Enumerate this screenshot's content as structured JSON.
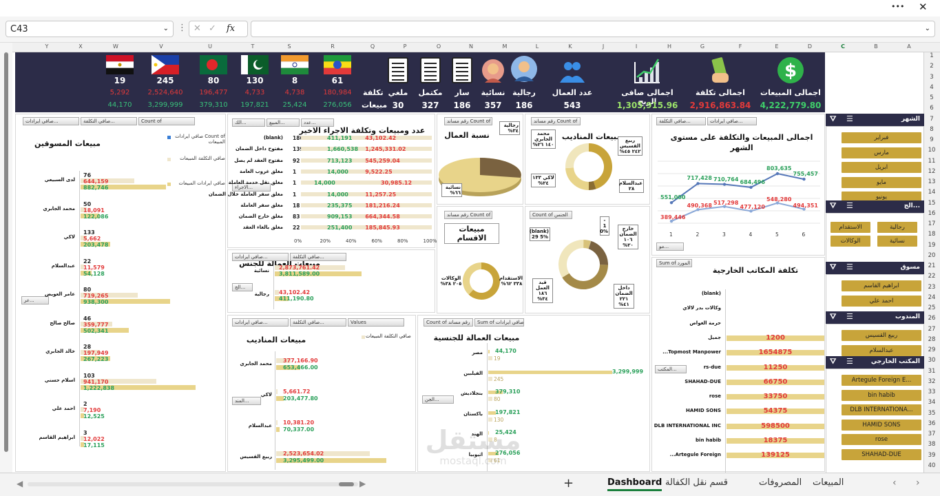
{
  "toolbar": {
    "more": "•••",
    "close": "✕"
  },
  "formula": {
    "cell": "C43",
    "fx": "fx",
    "value": ""
  },
  "columns": [
    "Y",
    "X",
    "W",
    "V",
    "U",
    "T",
    "S",
    "R",
    "Q",
    "P",
    "O",
    "N",
    "M",
    "L",
    "K",
    "J",
    "I",
    "H",
    "G",
    "F",
    "E",
    "D",
    "C",
    "B",
    "A"
  ],
  "rows": [
    "1",
    "2",
    "3",
    "4",
    "5",
    "6",
    "7",
    "8",
    "9",
    "10",
    "11",
    "12",
    "13",
    "14",
    "15",
    "16",
    "17",
    "18",
    "19",
    "20",
    "21",
    "22",
    "23",
    "24",
    "25",
    "26",
    "27",
    "28",
    "29",
    "30",
    "31",
    "32",
    "33",
    "34",
    "35",
    "36",
    "37",
    "38",
    "39",
    "40"
  ],
  "kpis": [
    {
      "label": "اجمالى المبيعات",
      "value": "4,222,779.80",
      "color": "#3fcf6a",
      "icon": "dollar-icon"
    },
    {
      "label": "اجمالى تكلفة",
      "value": "2,916,863.84",
      "color": "#e23a3a",
      "icon": "money-hand-icon"
    },
    {
      "label": "اجمالى صافى الربح",
      "value": "1,305,915.96",
      "color": "#9be26a",
      "icon": "growth-chart-icon"
    },
    {
      "label": "عدد العمال",
      "value": "543",
      "color": "#ffffff",
      "icon": "workers-icon"
    },
    {
      "label": "رجالية",
      "value": "186",
      "color": "#ffffff",
      "icon": "man-icon"
    },
    {
      "label": "نسائية",
      "value": "357",
      "color": "#ffffff",
      "icon": "woman-icon"
    },
    {
      "label": "سار",
      "value": "186",
      "color": "#ffffff",
      "icon": "file-icon"
    },
    {
      "label": "مكتمل",
      "value": "327",
      "color": "#ffffff",
      "icon": "file-icon"
    },
    {
      "label": "ملغي",
      "value": "30",
      "color": "#ffffff",
      "icon": "file-icon"
    }
  ],
  "kpi_side": {
    "l1": "تكلفة",
    "l2": "مبيعات"
  },
  "flags": [
    {
      "country": "ethiopia",
      "count": "61",
      "red": "180,984",
      "green": "276,056"
    },
    {
      "country": "india",
      "count": "8",
      "red": "4,738",
      "green": "25,424"
    },
    {
      "country": "pakistan",
      "count": "130",
      "red": "4,733",
      "green": "197,821"
    },
    {
      "country": "bangladesh",
      "count": "80",
      "red": "196,477",
      "green": "379,310"
    },
    {
      "country": "philippines",
      "count": "245",
      "red": "2,524,640",
      "green": "3,299,999"
    },
    {
      "country": "egypt",
      "count": "19",
      "red": "5,292",
      "green": "44,170"
    }
  ],
  "marketers": {
    "title": "مبيعات المسوقين",
    "chips": [
      "صافي ايرادات...",
      "صافي التكلفة...",
      "Count of"
    ],
    "legend": [
      "Count of صافي ايرادات المبيعات",
      "صافي التكلفة المبيعات",
      "صافي ايرادات المبيعات"
    ],
    "filter": "عر...",
    "rows": [
      {
        "name": "لدى السبيعي",
        "count": "76",
        "red": "644,159",
        "green": "882,746",
        "p": 0.17,
        "g": 0.23
      },
      {
        "name": "محمد الجابري",
        "count": "50",
        "red": "18,091",
        "green": "122,086",
        "p": 0.02,
        "g": 0.05
      },
      {
        "name": "لاكي",
        "count": "133",
        "red": "5,662",
        "green": "203,478",
        "p": 0.02,
        "g": 0.08
      },
      {
        "name": "عبدالسلام",
        "count": "22",
        "red": "11,579",
        "green": "54,128",
        "p": 0.01,
        "g": 0.03
      },
      {
        "name": "عامر العويض",
        "count": "80",
        "red": "719,265",
        "green": "938,300",
        "p": 0.18,
        "g": 0.24
      },
      {
        "name": "صالح صالح",
        "count": "46",
        "red": "359,777",
        "green": "502,341",
        "p": 0.1,
        "g": 0.13
      },
      {
        "name": "خالد الجابري",
        "count": "28",
        "red": "197,949",
        "green": "267,223",
        "p": 0.06,
        "g": 0.08
      },
      {
        "name": "اسلام حسني",
        "count": "103",
        "red": "941,170",
        "green": "1,222,838",
        "p": 0.24,
        "g": 0.31
      },
      {
        "name": "احمد علي",
        "count": "2",
        "red": "7,190",
        "green": "12,525",
        "p": 0.01,
        "g": 0.01
      },
      {
        "name": "ابراهيم القاسم",
        "count": "3",
        "red": "12,022",
        "green": "17,115",
        "p": 0.01,
        "g": 0.01
      }
    ]
  },
  "lastproc": {
    "title": "عدد ومبيعات وتكلفة الاجراء الاخير",
    "chips": [
      "الك...",
      "المبيع...",
      "عدد..."
    ],
    "filter": "الاجراء...",
    "ticks": [
      "0%",
      "20%",
      "40%",
      "60%",
      "80%",
      "100%"
    ],
    "rows": [
      {
        "name": "(blank)",
        "n": "186",
        "g": "411,191",
        "r": "43,102.42",
        "gp": 0.2,
        "rp": 0.28
      },
      {
        "name": "مفتوح داخل الضمان",
        "n": "139",
        "g": "1,660,538",
        "r": "1,245,331.02",
        "gp": 0.2,
        "rp": 0.28
      },
      {
        "name": "مفتوح العقد لم يصل",
        "n": "92",
        "g": "713,123",
        "r": "545,259.04",
        "gp": 0.2,
        "rp": 0.28
      },
      {
        "name": "مغلق غروب العامة",
        "n": "1",
        "g": "14,000",
        "r": "9,522.25",
        "gp": 0.2,
        "rp": 0.28
      },
      {
        "name": "مغلق نقل خدمة العاملة",
        "n": "1",
        "g": "14,000",
        "r": "30,985.12",
        "gp": 0.1,
        "rp": 0.4
      },
      {
        "name": "مغلق سفر العاملة خلال الضمان",
        "n": "1",
        "g": "14,000",
        "r": "11,257.25",
        "gp": 0.2,
        "rp": 0.28
      },
      {
        "name": "مغلق سفر العاملة",
        "n": "18",
        "g": "235,375",
        "r": "181,216.24",
        "gp": 0.2,
        "rp": 0.28
      },
      {
        "name": "مغلق خارج الضمان",
        "n": "83",
        "g": "909,153",
        "r": "664,344.58",
        "gp": 0.2,
        "rp": 0.28
      },
      {
        "name": "مغلق بالغاء العقد",
        "n": "22",
        "g": "251,400",
        "r": "185,845.93",
        "gp": 0.2,
        "rp": 0.28
      }
    ]
  },
  "ratio": {
    "title": "نسبة العمال",
    "chips": [
      "رقم مساند Count of"
    ],
    "lab1": "رجالية ٣٤%",
    "lab2": "نسائية ٦٦%"
  },
  "delegates": {
    "title": "مبيعات المناديب",
    "chips": [
      "رقم مساند Count of"
    ],
    "l1": "محمد الجابري ١٤٠ ٢٦%",
    "l2": "ربيع القسيس ٢٤٢ ٤٥%",
    "l3": "لاكي ١٣٣ ٢٤%",
    "l4": "عبدالسلام ٢٨"
  },
  "trend": {
    "title": "اجمالى المبيعات والتكلفة على مستوى الشهر",
    "chips": [
      "صافي التكلفة...",
      "صافي ايرادات..."
    ],
    "filter": "مو...",
    "x": [
      1,
      2,
      3,
      4,
      5,
      6
    ],
    "series": [
      {
        "values": [
          551000,
          717428,
          710764,
          684496,
          803635,
          755457
        ]
      },
      {
        "values": [
          389446,
          490368,
          517298,
          477120,
          548280,
          494351
        ]
      }
    ],
    "labels_top": [
      "551,000",
      "717,428",
      "710,764",
      "684,496",
      "803,635",
      "755,457"
    ],
    "labels_bot": [
      "389,446",
      "490,368",
      "517,298",
      "477,120",
      "548,280",
      "494,351"
    ]
  },
  "gender": {
    "title": "مبيعات العمالة للجنس",
    "chips": [
      "صافي ايرادات...",
      "صافي التكلفة..."
    ],
    "filter": "الج...",
    "r1": "2,873,761.42",
    "g1": "3,811,589.00",
    "n1": "نسائية",
    "r2": "43,102.42",
    "g2": "411,190.80",
    "n2": "رجالية"
  },
  "depts": {
    "title": "مبيعات الاقسام",
    "chips": [
      "رقم مساند Count of"
    ],
    "l1": "الوكالات ٢٠٥ ٣٨%",
    "l2": "الاستقدام ٣٣٨ ٦٢%"
  },
  "warranty": {
    "chips": [
      "Count of الجنس"
    ],
    "l1": "(blank) 29 5%",
    "l2": "- 1 0%",
    "l3": "خارج الضمان ١٠٦ ٢٠%",
    "l4": "قيد العمل ١٨٦ ٣٤%",
    "l5": "داخل الضمان ٢٢١ ٤١%"
  },
  "offices": {
    "title": "تكلفة المكاتب الخارجية",
    "chips": [
      "Sum of المورد"
    ],
    "filter": "المكتب...",
    "rows": [
      {
        "name": "(blank)",
        "v": ""
      },
      {
        "name": "وكالات بدر لالاي",
        "v": ""
      },
      {
        "name": "حرمة الغواص",
        "v": ""
      },
      {
        "name": "جميل",
        "v": "1200"
      },
      {
        "name": "Topmost Manpower...",
        "v": "1654875"
      },
      {
        "name": "rs-due",
        "v": "11250"
      },
      {
        "name": "SHAHAD-DUE",
        "v": "66750"
      },
      {
        "name": "rose",
        "v": "33750"
      },
      {
        "name": "HAMID SONS",
        "v": "54375"
      },
      {
        "name": "DLB INTERNATIONAL INC",
        "v": "598500"
      },
      {
        "name": "bin habib",
        "v": "18375"
      },
      {
        "name": "Artegule Foreign...",
        "v": "139125"
      }
    ]
  },
  "delsales": {
    "title": "مبيعات المناديب",
    "chips": [
      "صافي ايرادات...",
      "صافي التكلفة...",
      "Values"
    ],
    "legend": "صافي التكلفة المبيعات",
    "filter": "المند...",
    "rows": [
      {
        "name": "محمد الجابري",
        "r": "377,166.90",
        "g": "653,466.00"
      },
      {
        "name": "لاكي",
        "r": "5,661.72",
        "g": "203,477.80"
      },
      {
        "name": "عبدالسلام",
        "r": "10,381.20",
        "g": "70,337.00"
      },
      {
        "name": "ربيع القسيس",
        "r": "2,523,654.02",
        "g": "3,295,499.00"
      }
    ]
  },
  "natsales": {
    "title": "مبيعات العمالة للجنسية",
    "chips": [
      "Count of رقم مساند",
      "Sum of صافي ايرادات..."
    ],
    "filter": "الجن...",
    "rows": [
      {
        "name": "مصر",
        "g": "44,170",
        "c": "19"
      },
      {
        "name": "الفيلبين",
        "g": "3,299,999",
        "c": "245"
      },
      {
        "name": "بنجلاديش",
        "g": "379,310",
        "c": "80"
      },
      {
        "name": "باكستان",
        "g": "197,821",
        "c": "130"
      },
      {
        "name": "الهند",
        "g": "25,424",
        "c": "8"
      },
      {
        "name": "اثيوبيا",
        "g": "276,056",
        "c": "61"
      }
    ]
  },
  "slicers": [
    {
      "title": "الشهر",
      "items": [
        "فبراير",
        "مارس",
        "ابريل",
        "مايو",
        "يونيو"
      ]
    },
    {
      "title": "الج...",
      "items": [
        "رجالية",
        "الاستقدام",
        "نسائية",
        "الوكالات"
      ]
    },
    {
      "title": "مسوق",
      "items": [
        "ابراهيم القاسم",
        "احمد علي"
      ]
    },
    {
      "title": "المندوب",
      "items": [
        "ربيع القسيس",
        "عبدالسلام"
      ]
    },
    {
      "title": "المكتب الخارجي",
      "items": [
        "Artegule Foreign E...",
        "bin habib",
        "DLB INTERNATIONA...",
        "HAMID SONS",
        "rose",
        "SHAHAD-DUE"
      ]
    }
  ],
  "tabs": [
    "المبيعات",
    "المصروفات",
    "قسم نقل الكفالة",
    "Dashboard"
  ],
  "tab_active": "Dashboard",
  "watermark": {
    "brand": "مستقل",
    "url": "mostaql.com"
  }
}
